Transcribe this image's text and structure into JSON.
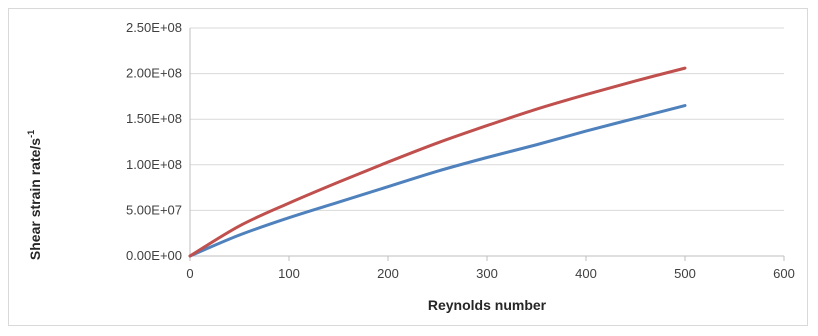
{
  "chart_data": {
    "type": "line",
    "title": "",
    "xlabel": "Reynolds number",
    "ylabel": "Shear strain rate/s",
    "ylabel_superscript": "-1",
    "xlim": [
      0,
      600
    ],
    "ylim": [
      0,
      250000000
    ],
    "x_ticks": [
      0,
      100,
      200,
      300,
      400,
      500,
      600
    ],
    "x_tick_labels": [
      "0",
      "100",
      "200",
      "300",
      "400",
      "500",
      "600"
    ],
    "y_ticks": [
      0,
      50000000,
      100000000,
      150000000,
      200000000,
      250000000
    ],
    "y_tick_labels": [
      "0.00E+00",
      "5.00E+07",
      "1.00E+08",
      "1.50E+08",
      "2.00E+08",
      "2.50E+08"
    ],
    "grid": "horizontal",
    "legend": "none",
    "series": [
      {
        "color": "#4f81bd",
        "x": [
          0,
          50,
          100,
          150,
          200,
          250,
          300,
          350,
          400,
          450,
          500
        ],
        "y": [
          0,
          23000000,
          42000000,
          59000000,
          76000000,
          93000000,
          108000000,
          122000000,
          137000000,
          151000000,
          165000000
        ]
      },
      {
        "color": "#c0504d",
        "x": [
          0,
          50,
          100,
          150,
          200,
          250,
          300,
          350,
          400,
          450,
          500
        ],
        "y": [
          0,
          33000000,
          58000000,
          81000000,
          103000000,
          124000000,
          143000000,
          161000000,
          177000000,
          192000000,
          206000000
        ]
      }
    ]
  }
}
